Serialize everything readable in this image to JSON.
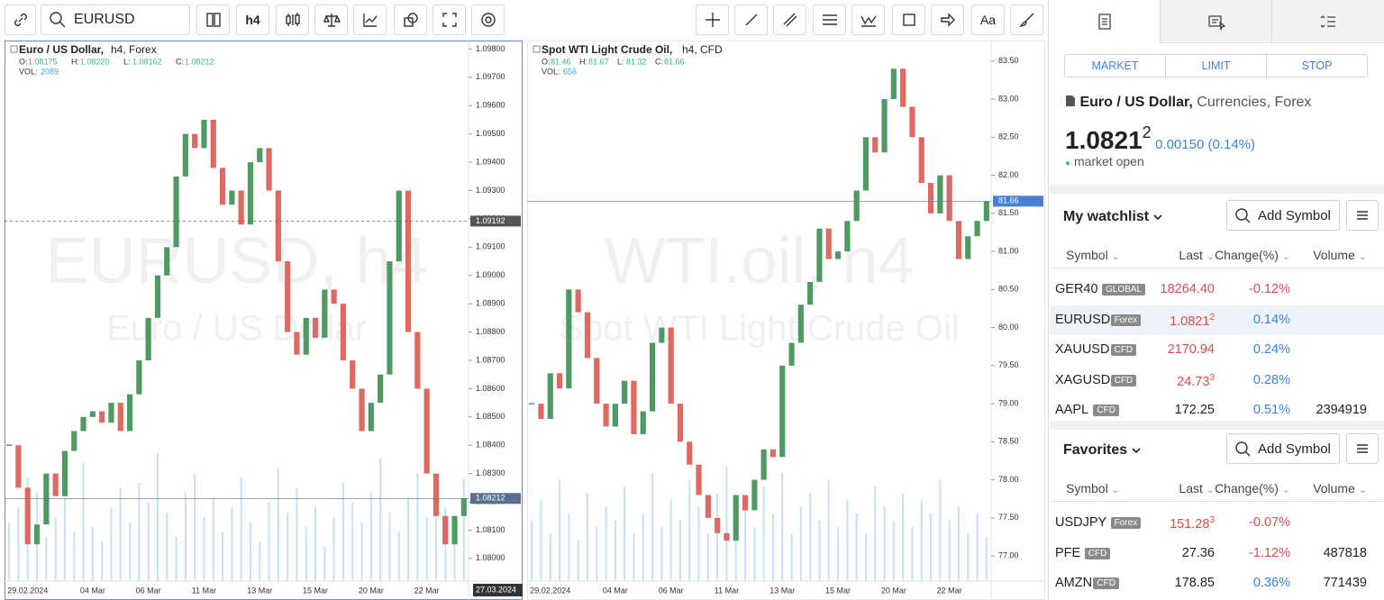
{
  "toolbar": {
    "symbol": "EURUSD",
    "interval": "h4",
    "text_tool": "Aa"
  },
  "charts": [
    {
      "type": "candlestick",
      "title": "Euro / US Dollar,",
      "details": "h4,  Forex",
      "ohlc": [
        {
          "label": "O:",
          "value": "1.08175"
        },
        {
          "label": "H:",
          "value": "1.08220"
        },
        {
          "label": "L:",
          "value": "1.08162"
        },
        {
          "label": "C:",
          "value": "1.08212"
        }
      ],
      "volume_label": "VOL:",
      "volume": 2089,
      "watermark": "EURUSD, h4",
      "watermark_sub": "Euro / US Dollar",
      "categories": [
        null,
        null,
        "29.02.2024",
        null,
        null,
        null,
        null,
        null,
        null,
        "04 Mar",
        null,
        null,
        null,
        null,
        null,
        "06 Mar",
        null,
        null,
        null,
        null,
        null,
        "11 Mar",
        null,
        null,
        null,
        null,
        null,
        "13 Mar",
        null,
        null,
        null,
        null,
        null,
        "15 Mar",
        null,
        null,
        null,
        null,
        null,
        "20 Mar",
        null,
        null,
        null,
        null,
        null,
        "22 Mar",
        null,
        null,
        null,
        null
      ],
      "closes": [
        1.084,
        1.0825,
        1.0805,
        1.0812,
        1.083,
        1.0822,
        1.0838,
        1.0845,
        1.085,
        1.0852,
        1.0848,
        1.0855,
        1.0845,
        1.0858,
        1.087,
        1.0885,
        1.09,
        1.091,
        1.0935,
        1.095,
        1.0945,
        1.0955,
        1.0938,
        1.0925,
        1.093,
        1.0918,
        1.094,
        1.0945,
        1.093,
        1.0905,
        1.088,
        1.0872,
        1.0885,
        1.0878,
        1.0895,
        1.089,
        1.087,
        1.086,
        1.0845,
        1.0855,
        1.0865,
        1.0905,
        1.093,
        1.088,
        1.086,
        1.083,
        1.0815,
        1.0805,
        1.0815,
        1.08212
      ],
      "volumes": [
        1200,
        1500,
        2100,
        1800,
        900,
        1300,
        1700,
        1000,
        2400,
        1100,
        800,
        1500,
        1900,
        1200,
        2000,
        1600,
        2600,
        1400,
        900,
        1800,
        2200,
        1300,
        1700,
        1000,
        1500,
        2100,
        1200,
        800,
        1600,
        2300,
        1400,
        1900,
        1100,
        1500,
        700,
        1300,
        2000,
        1600,
        1200,
        1800,
        2500,
        1400,
        1000,
        1700,
        2200,
        1300,
        1900,
        1500,
        1100,
        2089
      ],
      "ylim": [
        1.0792,
        1.0983
      ],
      "yticks": [
        {
          "value": 1.098,
          "label": "1.09800"
        },
        {
          "value": 1.097,
          "label": "1.09700"
        },
        {
          "value": 1.096,
          "label": "1.09600"
        },
        {
          "value": 1.095,
          "label": "1.09500"
        },
        {
          "value": 1.094,
          "label": "1.09400"
        },
        {
          "value": 1.093,
          "label": "1.09300"
        },
        {
          "value": 1.092,
          "label": "1.09200"
        },
        {
          "value": 1.091,
          "label": "1.09100"
        },
        {
          "value": 1.09,
          "label": "1.09000"
        },
        {
          "value": 1.089,
          "label": "1.08900"
        },
        {
          "value": 1.088,
          "label": "1.08800"
        },
        {
          "value": 1.087,
          "label": "1.08700"
        },
        {
          "value": 1.086,
          "label": "1.08600"
        },
        {
          "value": 1.085,
          "label": "1.08500"
        },
        {
          "value": 1.084,
          "label": "1.08400"
        },
        {
          "value": 1.083,
          "label": "1.08300"
        },
        {
          "value": 1.082,
          "label": "1.08200"
        },
        {
          "value": 1.081,
          "label": "1.08100"
        },
        {
          "value": 1.08,
          "label": "1.08000"
        }
      ],
      "vlim": [
        0,
        11000
      ],
      "price_lines": [
        {
          "value": 1.09192,
          "label": "1.09192",
          "color": "#555555",
          "dashed": true
        },
        {
          "value": 1.08212,
          "label": "1.08212",
          "color": "#5a6f8f",
          "dashed": false
        }
      ],
      "cursor_date": "27.03.2024",
      "up_color": "#4f9a63",
      "down_color": "#e0695f",
      "volume_color": "#c5e2f5",
      "border_color": "#5b8def"
    },
    {
      "type": "candlestick",
      "title": "Spot WTI Light Crude Oil,",
      "details": "h4,  CFD",
      "ohlc": [
        {
          "label": "O:",
          "value": "81.46"
        },
        {
          "label": "H:",
          "value": "81.67"
        },
        {
          "label": "L:",
          "value": "81.32"
        },
        {
          "label": "C:",
          "value": "81.66"
        }
      ],
      "volume_label": "VOL:",
      "volume": 656,
      "watermark": "WTI.oil, h4",
      "watermark_sub": "Spot WTI Light Crude Oil",
      "categories": [
        null,
        null,
        "29.02.2024",
        null,
        null,
        null,
        null,
        null,
        null,
        "04 Mar",
        null,
        null,
        null,
        null,
        null,
        "06 Mar",
        null,
        null,
        null,
        null,
        null,
        "11 Mar",
        null,
        null,
        null,
        null,
        null,
        "13 Mar",
        null,
        null,
        null,
        null,
        null,
        "15 Mar",
        null,
        null,
        null,
        null,
        null,
        "20 Mar",
        null,
        null,
        null,
        null,
        null,
        "22 Mar",
        null,
        null,
        null,
        null
      ],
      "closes": [
        79.0,
        78.8,
        79.4,
        79.2,
        80.5,
        80.2,
        79.6,
        79.0,
        78.7,
        79.0,
        79.3,
        78.6,
        78.9,
        79.8,
        80.0,
        79.0,
        78.5,
        78.2,
        77.8,
        77.5,
        77.3,
        77.2,
        77.8,
        77.6,
        78.0,
        78.4,
        78.3,
        79.5,
        79.8,
        80.3,
        80.6,
        81.3,
        80.9,
        81.0,
        81.4,
        81.8,
        82.5,
        82.3,
        83.0,
        83.4,
        82.9,
        82.5,
        81.9,
        81.5,
        82.0,
        81.4,
        80.9,
        81.2,
        81.4,
        81.66
      ],
      "volumes": [
        900,
        1200,
        700,
        1500,
        1000,
        600,
        1300,
        800,
        1100,
        900,
        1400,
        700,
        1000,
        1600,
        800,
        1200,
        900,
        1500,
        1100,
        700,
        1300,
        1700,
        900,
        1200,
        800,
        1400,
        1000,
        1600,
        700,
        1100,
        1300,
        900,
        1500,
        800,
        1200,
        1000,
        700,
        1400,
        1100,
        900,
        1300,
        800,
        1200,
        1000,
        1500,
        900,
        1100,
        700,
        1000,
        656
      ],
      "ylim": [
        76.67,
        83.77
      ],
      "yticks": [
        {
          "value": 83.5,
          "label": "83.50"
        },
        {
          "value": 83,
          "label": "83.00"
        },
        {
          "value": 82.5,
          "label": "82.50"
        },
        {
          "value": 82,
          "label": "82.00"
        },
        {
          "value": 81.5,
          "label": "81.50"
        },
        {
          "value": 81,
          "label": "81.00"
        },
        {
          "value": 80.5,
          "label": "80.50"
        },
        {
          "value": 80,
          "label": "80.00"
        },
        {
          "value": 79.5,
          "label": "79.50"
        },
        {
          "value": 79,
          "label": "79.00"
        },
        {
          "value": 78.5,
          "label": "78.50"
        },
        {
          "value": 78,
          "label": "78.00"
        },
        {
          "value": 77.5,
          "label": "77.50"
        },
        {
          "value": 77,
          "label": "77.00"
        }
      ],
      "vlim": [
        0,
        8000
      ],
      "price_lines": [
        {
          "value": 81.66,
          "label": "81.66",
          "color": "#4a7fd4",
          "dashed": false
        }
      ],
      "up_color": "#4f9a63",
      "down_color": "#e0695f",
      "volume_color": "#c5e2f5",
      "border_color": "#e6e6e6"
    }
  ],
  "order_panel": {
    "tabs": [
      "MARKET",
      "LIMIT",
      "STOP"
    ],
    "name": "Euro / US Dollar,",
    "category": "Currencies, Forex",
    "price": "1.0821",
    "price_sup": "2",
    "change": "0.00150 (0.14%)",
    "status": "market open"
  },
  "watchlist": {
    "title": "My watchlist",
    "add": "Add Symbol",
    "columns": [
      "Symbol",
      "Last",
      "Change(%)",
      "Volume"
    ],
    "rows": [
      {
        "symbol": "GER40",
        "tag": "GLOBAL",
        "last": "18264.40",
        "change": "-0.12%",
        "last_color": "#e04b4b",
        "change_color": "#e04b4b"
      },
      {
        "symbol": "EURUSD",
        "tag": "Forex",
        "last": "1.0821",
        "sup": "2",
        "change": "0.14%",
        "last_color": "#e04b4b",
        "change_color": "#3c82e6"
      },
      {
        "symbol": "XAUUSD",
        "tag": "CFD",
        "last": "2170.94",
        "change": "0.24%",
        "last_color": "#e04b4b",
        "change_color": "#3c82e6"
      },
      {
        "symbol": "XAGUSD",
        "tag": "CFD",
        "last": "24.73",
        "sup": "3",
        "change": "0.28%",
        "last_color": "#e04b4b",
        "change_color": "#3c82e6"
      },
      {
        "symbol": "AAPL",
        "tag": "CFD",
        "last": "172.25",
        "change": "0.51%",
        "volume": "2394919",
        "last_color": "#222222",
        "change_color": "#3c82e6"
      }
    ]
  },
  "favorites": {
    "title": "Favorites",
    "add": "Add Symbol",
    "columns": [
      "Symbol",
      "Last",
      "Change(%)",
      "Volume"
    ],
    "rows": [
      {
        "symbol": "USDJPY",
        "tag": "Forex",
        "last": "151.28",
        "sup": "3",
        "change": "-0.07%",
        "last_color": "#e04b4b",
        "change_color": "#e04b4b"
      },
      {
        "symbol": "PFE",
        "tag": "CFD",
        "last": "27.36",
        "change": "-1.12%",
        "volume": "487818",
        "last_color": "#222222",
        "change_color": "#e04b4b"
      },
      {
        "symbol": "AMZN",
        "tag": "CFD",
        "last": "178.85",
        "change": "0.36%",
        "volume": "771439",
        "last_color": "#222222",
        "change_color": "#3c82e6"
      }
    ]
  }
}
